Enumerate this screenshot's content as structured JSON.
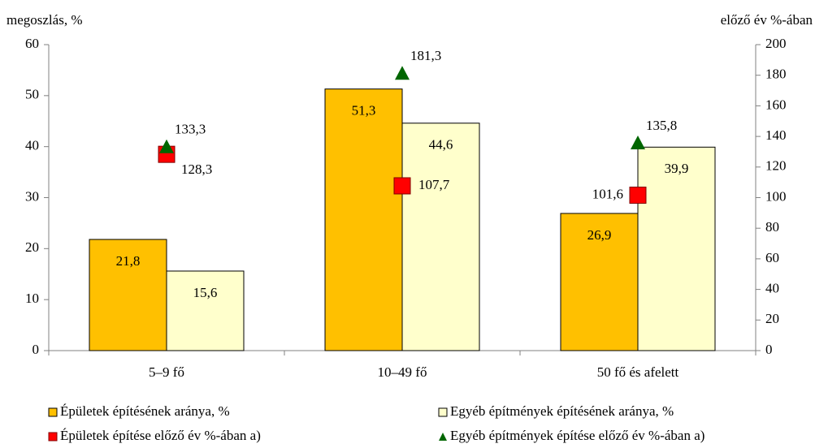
{
  "chart_data": {
    "type": "bar",
    "y_axis_label": "megoszlás, %",
    "y2_axis_label": "előző év %-ában",
    "categories": [
      "5–9 fő",
      "10–49 fő",
      "50 fő és afelett"
    ],
    "series": [
      {
        "name": "Épületek építésének aránya, %",
        "type": "bar",
        "color": "#ffc000",
        "values": [
          21.8,
          51.3,
          26.9
        ],
        "value_labels": [
          "21,8",
          "51,3",
          "26,9"
        ]
      },
      {
        "name": "Egyéb építmények építésének aránya, %",
        "type": "bar",
        "color": "#ffffcc",
        "values": [
          15.6,
          44.6,
          39.9
        ],
        "value_labels": [
          "15,6",
          "44,6",
          "39,9"
        ]
      },
      {
        "name": "Épületek építése előző év %-ában a)",
        "type": "scatter",
        "marker": "square",
        "axis": "y2",
        "color": "#ff0000",
        "values": [
          128.3,
          107.7,
          101.6
        ],
        "value_labels": [
          "128,3",
          "107,7",
          "101,6"
        ]
      },
      {
        "name": "Egyéb építmények építése előző év %-ában a)",
        "type": "scatter",
        "marker": "triangle",
        "axis": "y2",
        "color": "#006600",
        "values": [
          133.3,
          181.3,
          135.8
        ],
        "value_labels": [
          "133,3",
          "181,3",
          "135,8"
        ]
      }
    ],
    "ylim": [
      0,
      60
    ],
    "yticks": [
      0,
      10,
      20,
      30,
      40,
      50,
      60
    ],
    "y2lim": [
      0,
      200
    ],
    "y2ticks": [
      0,
      20,
      40,
      60,
      80,
      100,
      120,
      140,
      160,
      180,
      200
    ]
  }
}
